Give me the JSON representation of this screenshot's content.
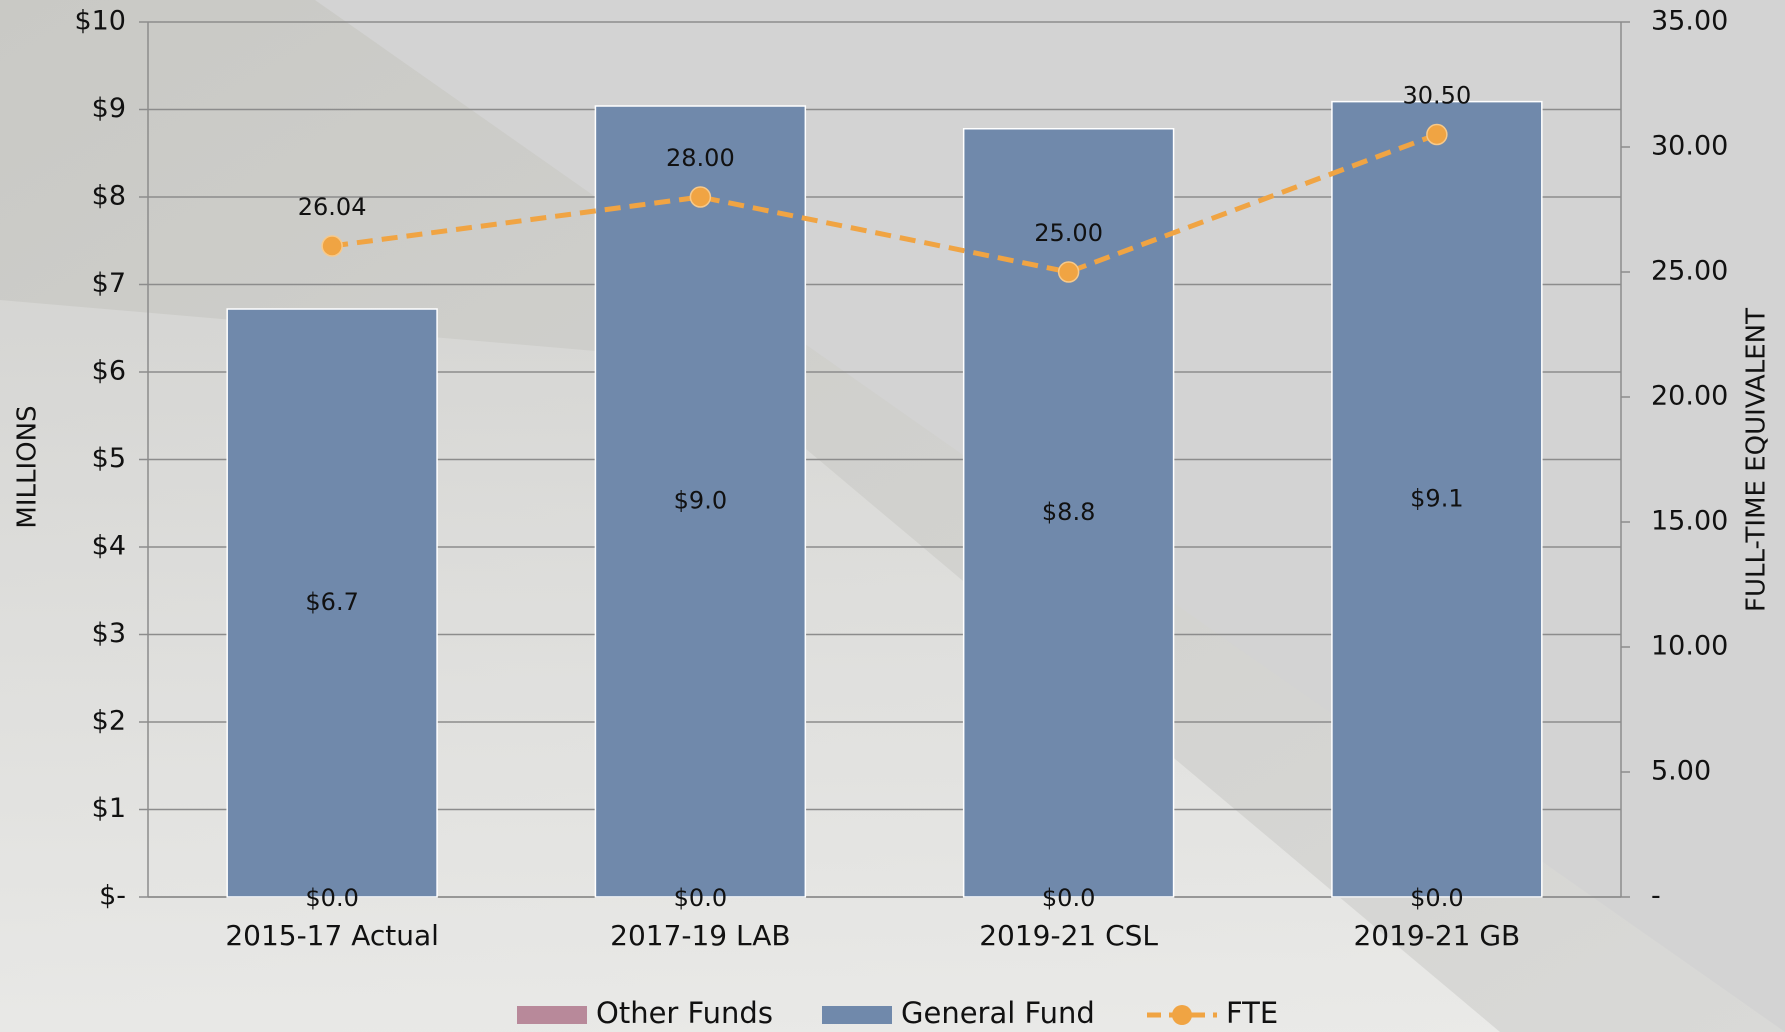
{
  "chart_data": {
    "type": "bar",
    "stacked": true,
    "grid": true,
    "legend": "bottom",
    "ylabel": "MILLIONS",
    "y2label": "FULL-TIME EQUIVALENT",
    "categories": [
      "2015-17 Actual",
      "2017-19 LAB",
      "2019-21 CSL",
      "2019-21 GB"
    ],
    "series": [
      {
        "name": "Other Funds",
        "color": "#b8899a",
        "values": [
          0,
          0,
          0,
          0
        ],
        "value_labels": [
          "$0.0",
          "$0.0",
          "$0.0",
          "$0.0"
        ]
      },
      {
        "name": "General Fund",
        "color": "#7089ab",
        "values": [
          6.72,
          9.04,
          8.78,
          9.09
        ],
        "value_labels": [
          "$6.7",
          "$9.0",
          "$8.8",
          "$9.1"
        ]
      },
      {
        "name": "FTE",
        "type": "line",
        "axis": "y2",
        "color": "#f0a443",
        "values": [
          26.04,
          28.0,
          25.0,
          30.5
        ],
        "value_labels": [
          "26.04",
          "28.00",
          "25.00",
          "30.50"
        ]
      }
    ],
    "ylim": [
      0,
      10
    ],
    "yticks": [
      {
        "value": 0,
        "label": "$-"
      },
      {
        "value": 1,
        "label": "$1"
      },
      {
        "value": 2,
        "label": "$2"
      },
      {
        "value": 3,
        "label": "$3"
      },
      {
        "value": 4,
        "label": "$4"
      },
      {
        "value": 5,
        "label": "$5"
      },
      {
        "value": 6,
        "label": "$6"
      },
      {
        "value": 7,
        "label": "$7"
      },
      {
        "value": 8,
        "label": "$8"
      },
      {
        "value": 9,
        "label": "$9"
      },
      {
        "value": 10,
        "label": "$10"
      }
    ],
    "y2lim": [
      0,
      35
    ],
    "y2ticks": [
      {
        "value": 0,
        "label": "-"
      },
      {
        "value": 5,
        "label": "5.00"
      },
      {
        "value": 10,
        "label": "10.00"
      },
      {
        "value": 15,
        "label": "15.00"
      },
      {
        "value": 20,
        "label": "20.00"
      },
      {
        "value": 25,
        "label": "25.00"
      },
      {
        "value": 30,
        "label": "30.00"
      },
      {
        "value": 35,
        "label": "35.00"
      }
    ]
  }
}
